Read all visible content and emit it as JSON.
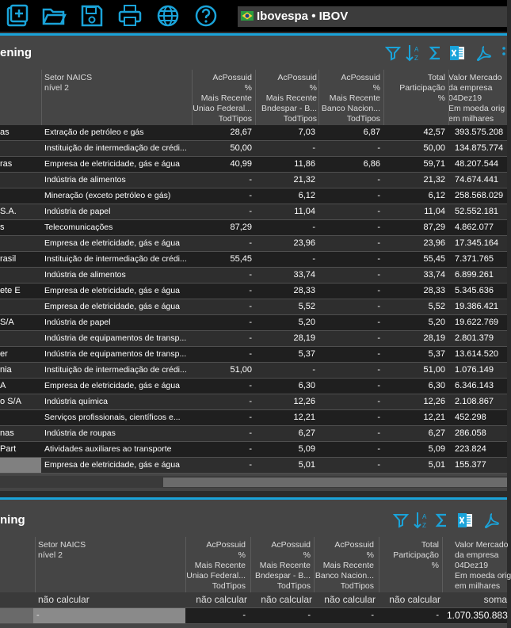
{
  "toolbar": {
    "icons": [
      "add-window-icon",
      "open-folder-icon",
      "save-icon",
      "print-icon",
      "globe-icon",
      "help-icon"
    ],
    "ticker_label": "Ibovespa • IBOV"
  },
  "colors": {
    "accent": "#1aa3d9",
    "background": "#2b2b2b",
    "panel": "#454545",
    "highlight": "#808080"
  },
  "panel1": {
    "title": "ening",
    "headers": {
      "setor": "Setor NAICS\nnível 2",
      "col1": "AcPossuid\n%\nMais Recente\nUniao Federal...\nTodTipos",
      "col2": "AcPossuid\n%\nMais Recente\nBndespar - B...\nTodTipos",
      "col3": "AcPossuid\n%\nMais Recente\nBanco Nacion...\nTodTipos",
      "col4": "Total\nParticipação\n%",
      "col5": "Valor Mercado\nda empresa\n04Dez19\nEm moeda orig\nem milhares"
    },
    "rows": [
      {
        "name": "as",
        "setor": "Extração de petróleo e gás",
        "v1": "28,67",
        "v2": "7,03",
        "v3": "6,87",
        "total": "42,57",
        "valor": "393.575.208"
      },
      {
        "name": "",
        "setor": "Instituição de intermediação de crédi...",
        "v1": "50,00",
        "v2": "-",
        "v3": "-",
        "total": "50,00",
        "valor": "134.875.774"
      },
      {
        "name": "ras",
        "setor": "Empresa de eletricidade, gás e água",
        "v1": "40,99",
        "v2": "11,86",
        "v3": "6,86",
        "total": "59,71",
        "valor": "48.207.544"
      },
      {
        "name": "",
        "setor": "Indústria de alimentos",
        "v1": "-",
        "v2": "21,32",
        "v3": "-",
        "total": "21,32",
        "valor": "74.674.441"
      },
      {
        "name": "",
        "setor": "Mineração (exceto petróleo e gás)",
        "v1": "-",
        "v2": "6,12",
        "v3": "-",
        "total": "6,12",
        "valor": "258.568.029"
      },
      {
        "name": "S.A.",
        "setor": "Indústria de papel",
        "v1": "-",
        "v2": "11,04",
        "v3": "-",
        "total": "11,04",
        "valor": "52.552.181"
      },
      {
        "name": "s",
        "setor": "Telecomunicações",
        "v1": "87,29",
        "v2": "-",
        "v3": "-",
        "total": "87,29",
        "valor": "4.862.077"
      },
      {
        "name": "",
        "setor": "Empresa de eletricidade, gás e água",
        "v1": "-",
        "v2": "23,96",
        "v3": "-",
        "total": "23,96",
        "valor": "17.345.164"
      },
      {
        "name": "rasil",
        "setor": "Instituição de intermediação de crédi...",
        "v1": "55,45",
        "v2": "-",
        "v3": "-",
        "total": "55,45",
        "valor": "7.371.765"
      },
      {
        "name": "",
        "setor": "Indústria de alimentos",
        "v1": "-",
        "v2": "33,74",
        "v3": "-",
        "total": "33,74",
        "valor": "6.899.261"
      },
      {
        "name": "ete E",
        "setor": "Empresa de eletricidade, gás e água",
        "v1": "-",
        "v2": "28,33",
        "v3": "-",
        "total": "28,33",
        "valor": "5.345.636"
      },
      {
        "name": "",
        "setor": "Empresa de eletricidade, gás e água",
        "v1": "-",
        "v2": "5,52",
        "v3": "-",
        "total": "5,52",
        "valor": "19.386.421"
      },
      {
        "name": "S/A",
        "setor": "Indústria de papel",
        "v1": "-",
        "v2": "5,20",
        "v3": "-",
        "total": "5,20",
        "valor": "19.622.769"
      },
      {
        "name": "",
        "setor": "Indústria de equipamentos de transp...",
        "v1": "-",
        "v2": "28,19",
        "v3": "-",
        "total": "28,19",
        "valor": "2.801.379"
      },
      {
        "name": "er",
        "setor": "Indústria de equipamentos de transp...",
        "v1": "-",
        "v2": "5,37",
        "v3": "-",
        "total": "5,37",
        "valor": "13.614.520"
      },
      {
        "name": "nia",
        "setor": "Instituição de intermediação de crédi...",
        "v1": "51,00",
        "v2": "-",
        "v3": "-",
        "total": "51,00",
        "valor": "1.076.149"
      },
      {
        "name": "A",
        "setor": "Empresa de eletricidade, gás e água",
        "v1": "-",
        "v2": "6,30",
        "v3": "-",
        "total": "6,30",
        "valor": "6.346.143"
      },
      {
        "name": "o S/A",
        "setor": "Indústria química",
        "v1": "-",
        "v2": "12,26",
        "v3": "-",
        "total": "12,26",
        "valor": "2.108.867"
      },
      {
        "name": "",
        "setor": "Serviços profissionais, científicos e...",
        "v1": "-",
        "v2": "12,21",
        "v3": "-",
        "total": "12,21",
        "valor": "452.298"
      },
      {
        "name": "nas",
        "setor": "Indústria de roupas",
        "v1": "-",
        "v2": "6,27",
        "v3": "-",
        "total": "6,27",
        "valor": "286.058"
      },
      {
        "name": "Part",
        "setor": "Atividades auxiliares ao transporte",
        "v1": "-",
        "v2": "5,09",
        "v3": "-",
        "total": "5,09",
        "valor": "223.824"
      },
      {
        "name": "",
        "setor": "Empresa de eletricidade, gás e água",
        "v1": "-",
        "v2": "5,01",
        "v3": "-",
        "total": "5,01",
        "valor": "155.377"
      }
    ]
  },
  "panel2": {
    "title": "ning",
    "headers": {
      "setor": "Setor NAICS\nnível 2",
      "col1": "AcPossuid\n%\nMais Recente\nUniao Federal...\nTodTipos",
      "col2": "AcPossuid\n%\nMais Recente\nBndespar - B...\nTodTipos",
      "col3": "AcPossuid\n%\nMais Recente\nBanco Nacion...\nTodTipos",
      "col4": "Total\nParticipação\n%",
      "col5": "Valor Mercado\nda empresa\n04Dez19\nEm moeda orig\nem milhares"
    },
    "agg_row": {
      "setor": "não calcular",
      "v1": "não calcular",
      "v2": "não calcular",
      "v3": "não calcular",
      "total": "não calcular",
      "valor": "soma"
    },
    "total_row": {
      "setor": "-",
      "v1": "-",
      "v2": "-",
      "v3": "-",
      "total": "-",
      "valor": "1.070.350.883"
    }
  }
}
